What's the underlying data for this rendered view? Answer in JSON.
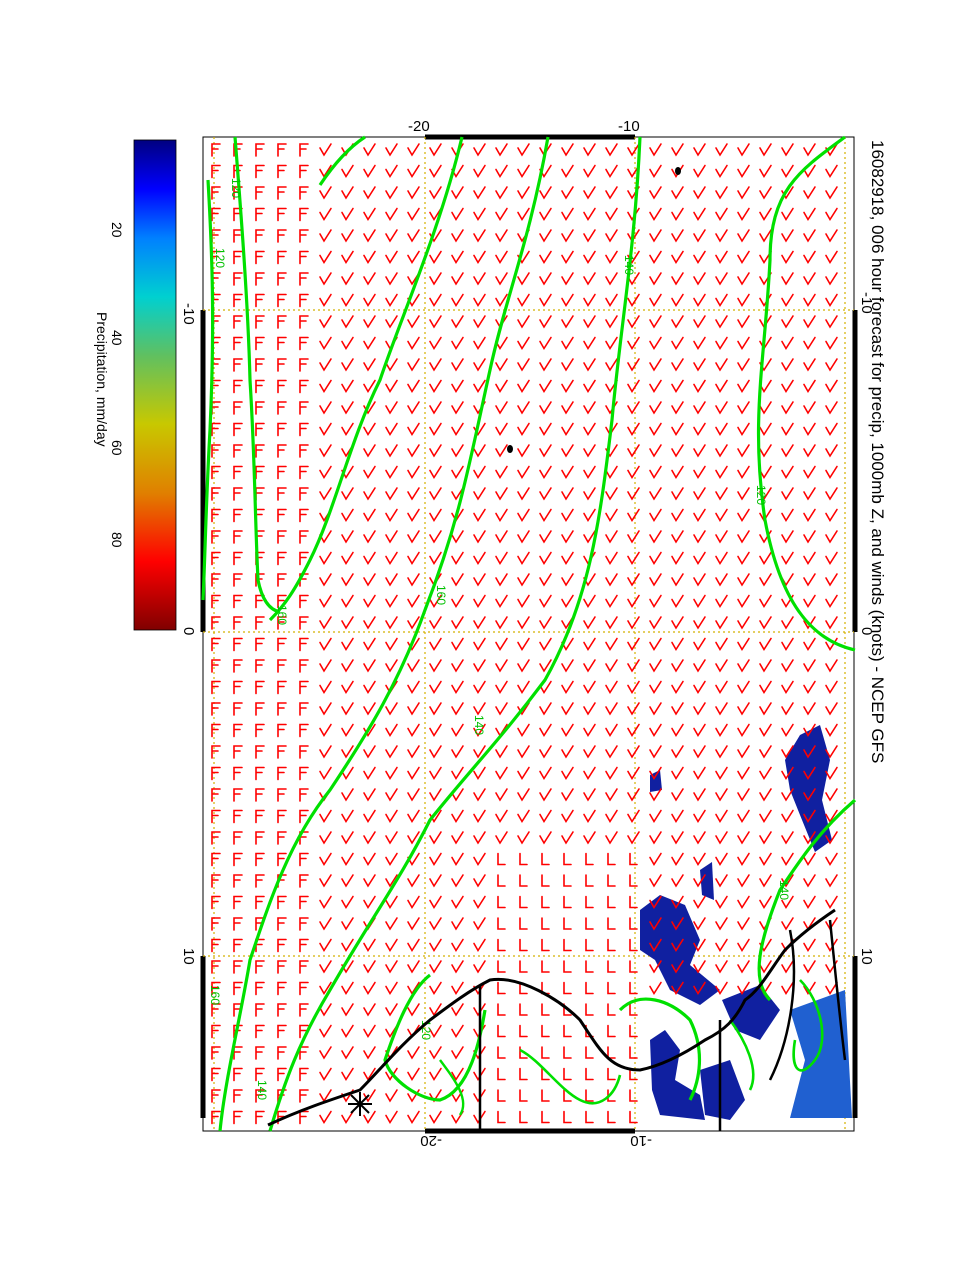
{
  "title": "16082918, 006 hour forecast for precip, 1000mb Z, and winds (knots) - NCEP GFS",
  "axes": {
    "lon_ticks": [
      "-10",
      "0",
      "10"
    ],
    "lat_ticks": [
      "-20",
      "-10"
    ],
    "lon_range": [
      -20,
      20
    ],
    "lat_range": [
      -35,
      0
    ]
  },
  "colorbar": {
    "label": "Precipitation, mm/day",
    "ticks": [
      "20",
      "40",
      "60",
      "80"
    ],
    "colors": [
      "#000080",
      "#0000ff",
      "#0080ff",
      "#00d0d0",
      "#60c060",
      "#c8c800",
      "#e08000",
      "#ff0000",
      "#800000"
    ]
  },
  "contour_labels": [
    "140",
    "120",
    "160",
    "140",
    "160",
    "140",
    "120",
    "120",
    "160",
    "120",
    "140"
  ],
  "colors": {
    "wind_barbs": "#ff0000",
    "contours": "#00e000",
    "grid": "#d4b000",
    "coast": "#000000",
    "precip": "#1020a0"
  }
}
